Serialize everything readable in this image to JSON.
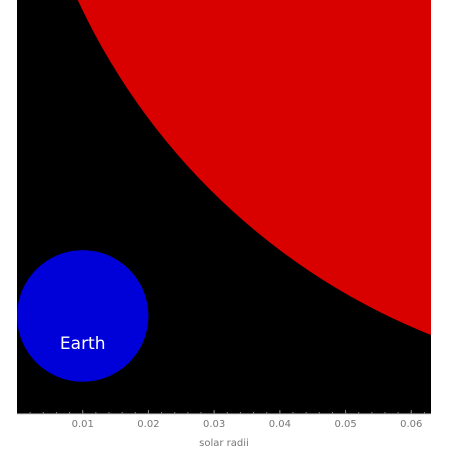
{
  "chart_data": {
    "type": "size-comparison",
    "xlabel": "solar radii",
    "xlim": [
      0,
      0.063
    ],
    "ylim": [
      -0.0049,
      0.058
    ],
    "x_ticks": [
      0.01,
      0.02,
      0.03,
      0.04,
      0.05,
      0.06
    ],
    "x_tick_labels": [
      "0.01",
      "0.02",
      "0.03",
      "0.04",
      "0.05",
      "0.06"
    ],
    "minor_tick_step": 0.002,
    "background": "#000000",
    "bodies": [
      {
        "key": "large",
        "label": "",
        "radius": 0.1,
        "center": [
          0.1,
          0.1
        ],
        "color": "#d90000"
      },
      {
        "key": "earth",
        "label": "Earth",
        "radius": 0.01,
        "center": [
          0.01,
          0.01
        ],
        "color": "#0000d9"
      }
    ]
  }
}
